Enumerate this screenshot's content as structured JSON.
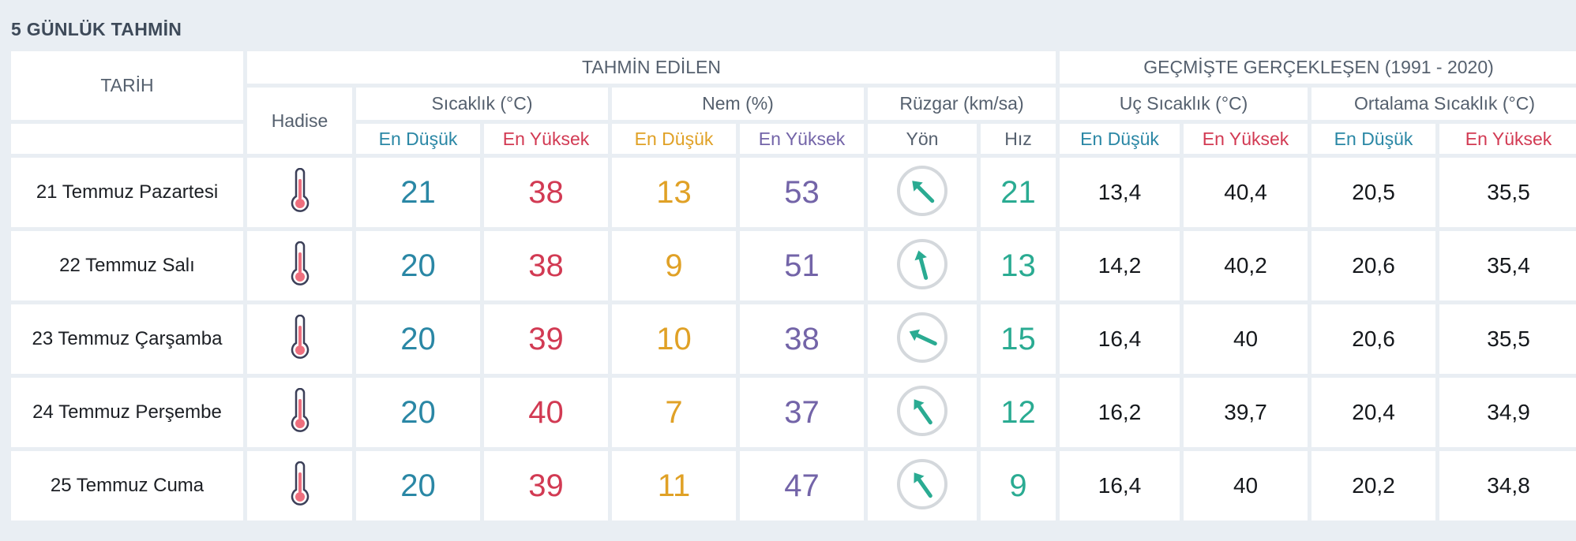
{
  "page_title": "5 GÜNLÜK TAHMİN",
  "headers": {
    "date": "TARİH",
    "forecast_group": "TAHMİN EDİLEN",
    "history_group": "GEÇMİŞTE GERÇEKLEŞEN (1991 - 2020)",
    "event": "Hadise",
    "temperature": "Sıcaklık (°C)",
    "humidity": "Nem (%)",
    "wind": "Rüzgar (km/sa)",
    "extreme_temp": "Uç Sıcaklık (°C)",
    "avg_temp": "Ortalama Sıcaklık (°C)",
    "min": "En Düşük",
    "max": "En Yüksek",
    "direction": "Yön",
    "speed": "Hız"
  },
  "colors": {
    "min": "#2a87a5",
    "max": "#d23a53",
    "humidity_min": "#e0a126",
    "humidity_max": "#7364a8",
    "wind": "#2aab92",
    "thermometer_fill": "#ee6f7e",
    "thermometer_outline": "#3b3f58"
  },
  "rows": [
    {
      "date": "21 Temmuz Pazartesi",
      "icon": "thermometer-icon",
      "temp_min": "21",
      "temp_max": "38",
      "hum_min": "13",
      "hum_max": "53",
      "wind_direction_deg": 135,
      "wind_speed": "21",
      "ext_min": "13,4",
      "ext_max": "40,4",
      "avg_min": "20,5",
      "avg_max": "35,5"
    },
    {
      "date": "22 Temmuz Salı",
      "icon": "thermometer-icon",
      "temp_min": "20",
      "temp_max": "38",
      "hum_min": "9",
      "hum_max": "51",
      "wind_direction_deg": 165,
      "wind_speed": "13",
      "ext_min": "14,2",
      "ext_max": "40,2",
      "avg_min": "20,6",
      "avg_max": "35,4"
    },
    {
      "date": "23 Temmuz Çarşamba",
      "icon": "thermometer-icon",
      "temp_min": "20",
      "temp_max": "39",
      "hum_min": "10",
      "hum_max": "38",
      "wind_direction_deg": 115,
      "wind_speed": "15",
      "ext_min": "16,4",
      "ext_max": "40",
      "avg_min": "20,6",
      "avg_max": "35,5"
    },
    {
      "date": "24 Temmuz Perşembe",
      "icon": "thermometer-icon",
      "temp_min": "20",
      "temp_max": "40",
      "hum_min": "7",
      "hum_max": "37",
      "wind_direction_deg": 145,
      "wind_speed": "12",
      "ext_min": "16,2",
      "ext_max": "39,7",
      "avg_min": "20,4",
      "avg_max": "34,9"
    },
    {
      "date": "25 Temmuz Cuma",
      "icon": "thermometer-icon",
      "temp_min": "20",
      "temp_max": "39",
      "hum_min": "11",
      "hum_max": "47",
      "wind_direction_deg": 145,
      "wind_speed": "9",
      "ext_min": "16,4",
      "ext_max": "40",
      "avg_min": "20,2",
      "avg_max": "34,8"
    }
  ]
}
